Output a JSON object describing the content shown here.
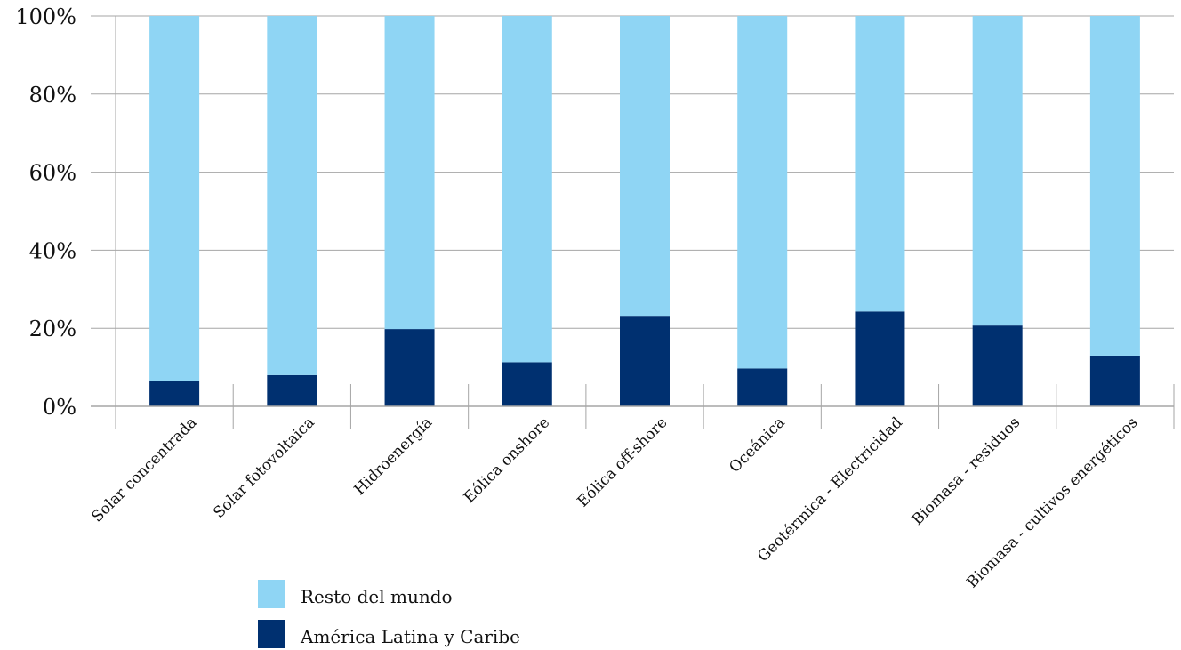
{
  "chart_data": {
    "type": "bar",
    "stacked": true,
    "percent": true,
    "categories": [
      "Solar concentrada",
      "Solar fotovoltaica",
      "Hidroenergía",
      "Eólica onshore",
      "Eólica off-shore",
      "Oceánica",
      "Geotérmica - Electricidad",
      "Biomasa - residuos",
      "Biomasa - cultivos energéticos"
    ],
    "series": [
      {
        "name": "América Latina y Caribe",
        "color": "#003070",
        "values": [
          6.5,
          8,
          19.8,
          11.3,
          23.2,
          9.7,
          24.3,
          20.7,
          13
        ]
      },
      {
        "name": "Resto del mundo",
        "color": "#8fd5f4",
        "values": [
          93.5,
          92,
          80.2,
          88.7,
          76.8,
          90.3,
          75.7,
          79.3,
          87
        ]
      }
    ],
    "yticks": [
      "0%",
      "20%",
      "40%",
      "60%",
      "80%",
      "100%"
    ],
    "ylim": [
      0,
      100
    ],
    "grid": true,
    "legend_position": "bottom-left",
    "legend_order": [
      "Resto del mundo",
      "América Latina y Caribe"
    ]
  }
}
